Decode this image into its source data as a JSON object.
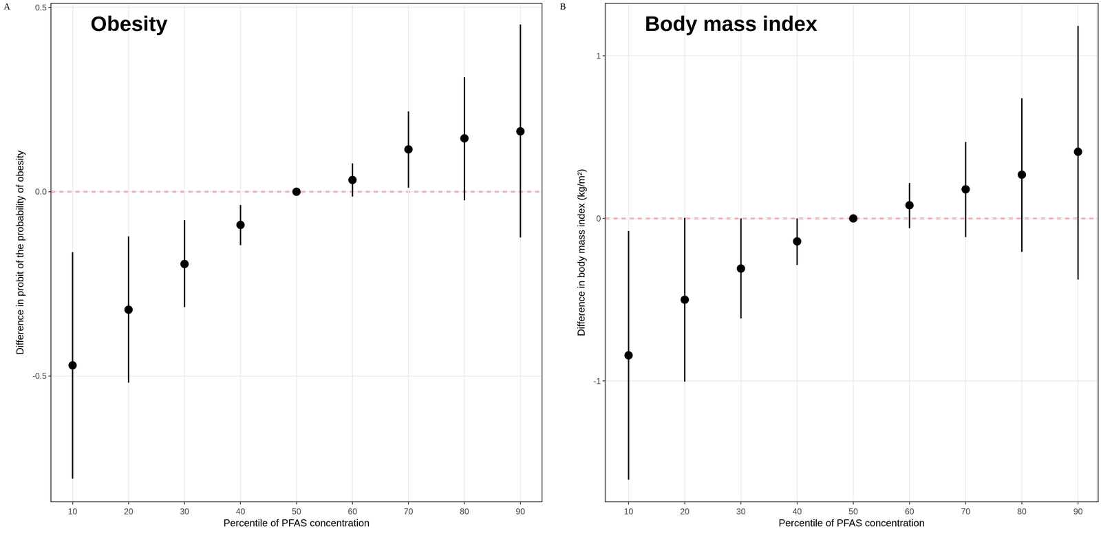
{
  "chart_data": [
    {
      "type": "scatter",
      "panel_label": "A",
      "title": "Obesity",
      "x_label": "Percentile of PFAS concentration",
      "y_label": "Difference in probit of the probability of obesity",
      "x": [
        10,
        20,
        30,
        40,
        50,
        60,
        70,
        80,
        90
      ],
      "values": [
        -0.471,
        -0.32,
        -0.196,
        -0.09,
        0.0,
        0.032,
        0.115,
        0.145,
        0.164
      ],
      "lower": [
        -0.778,
        -0.518,
        -0.313,
        -0.145,
        0.0,
        -0.013,
        0.011,
        -0.023,
        -0.124
      ],
      "upper": [
        -0.164,
        -0.121,
        -0.077,
        -0.036,
        0.0,
        0.077,
        0.218,
        0.311,
        0.454
      ],
      "color": "#000000",
      "marker": "circle",
      "grid": true,
      "reference_line": 0,
      "xlim": [
        6.2,
        93.8
      ],
      "xticks": [
        10,
        20,
        30,
        40,
        50,
        60,
        70,
        80,
        90
      ],
      "ylim": [
        -0.84,
        0.51
      ],
      "yticks": [
        -0.5,
        {
          "value": 0,
          "label": "0.0"
        },
        0.5
      ]
    },
    {
      "type": "scatter",
      "panel_label": "B",
      "title": "Body mass index",
      "x_label": "Percentile of PFAS concentration",
      "y_label": "Difference in body mass index (kg/m²)",
      "x": [
        10,
        20,
        30,
        40,
        50,
        60,
        70,
        80,
        90
      ],
      "values": [
        -0.842,
        -0.5,
        -0.308,
        -0.141,
        0.0,
        0.081,
        0.179,
        0.269,
        0.41
      ],
      "lower": [
        -1.607,
        -1.004,
        -0.615,
        -0.286,
        0.0,
        -0.06,
        -0.115,
        -0.205,
        -0.376
      ],
      "upper": [
        -0.077,
        0.004,
        0.0,
        0.0,
        0.0,
        0.218,
        0.47,
        0.739,
        1.184
      ],
      "color": "#000000",
      "marker": "circle",
      "grid": true,
      "reference_line": 0,
      "xlim": [
        5.9,
        93.5
      ],
      "xticks": [
        10,
        20,
        30,
        40,
        50,
        60,
        70,
        80,
        90
      ],
      "ylim": [
        -1.74,
        1.32
      ],
      "yticks": [
        -1,
        0,
        1
      ]
    }
  ]
}
